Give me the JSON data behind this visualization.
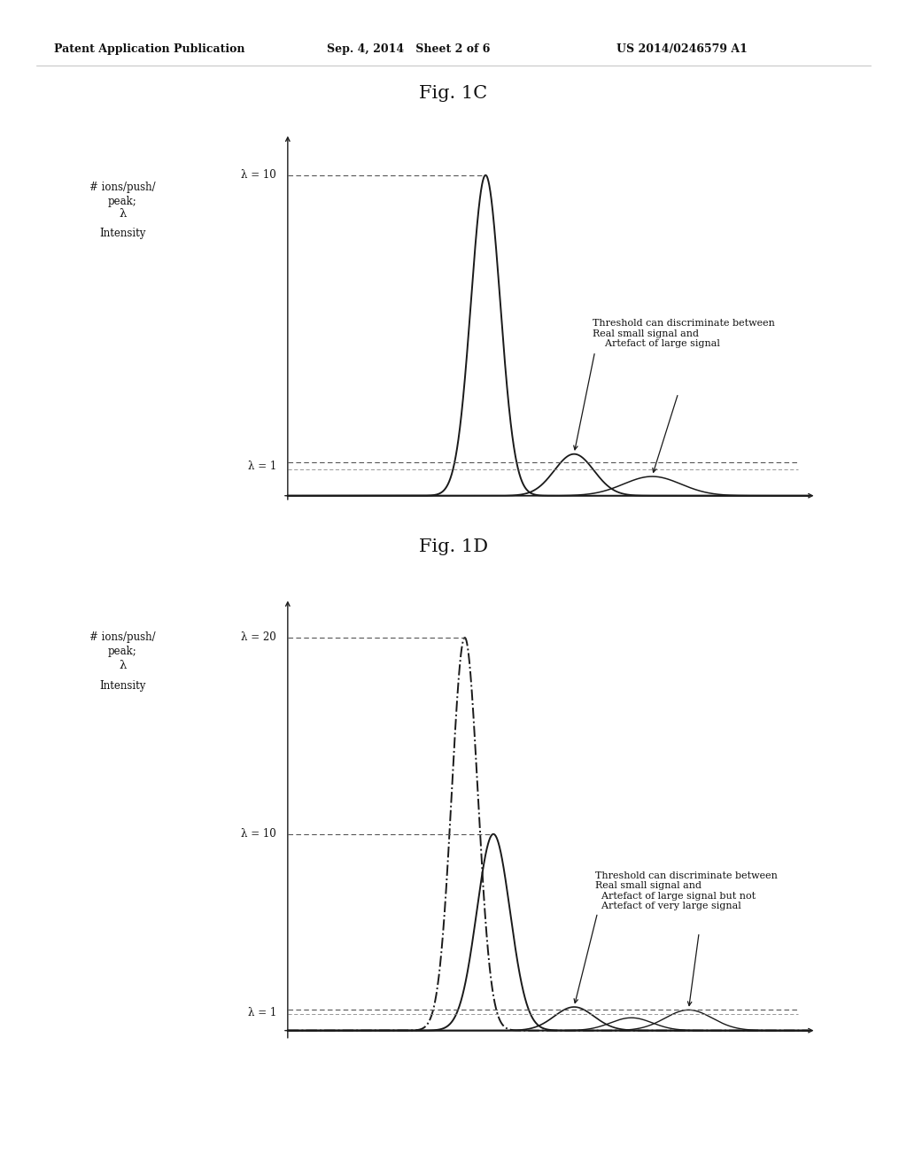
{
  "header_left": "Patent Application Publication",
  "header_mid": "Sep. 4, 2014   Sheet 2 of 6",
  "header_right": "US 2014/0246579 A1",
  "fig1c_title": "Fig. 1C",
  "fig1d_title": "Fig. 1D",
  "ylabel_line1": "# ions/push/",
  "ylabel_line2": "peak;",
  "ylabel_line3": "λ",
  "ylabel_line4": "Intensity",
  "lambda_10_label": "λ = 10",
  "lambda_1_label": "λ = 1",
  "lambda_20_label": "λ = 20",
  "annotation_1c": "Threshold can discriminate between\nReal small signal and\n    Artefact of large signal",
  "annotation_1d": "Threshold can discriminate between\nReal small signal and\n  Artefact of large signal but not\n  Artefact of very large signal",
  "bg_color": "#ffffff",
  "line_color": "#1a1a1a",
  "dashed_color": "#555555"
}
